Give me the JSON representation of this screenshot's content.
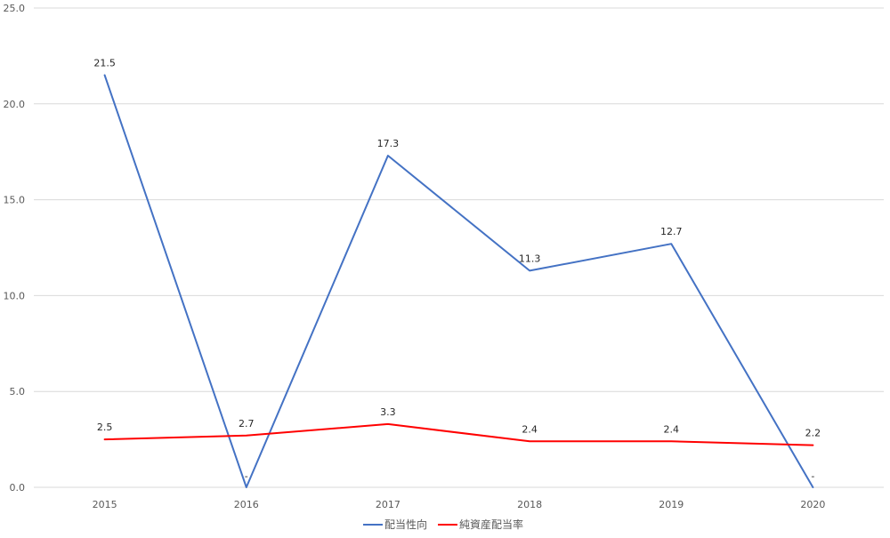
{
  "chart_data": {
    "type": "line",
    "categories": [
      "2015",
      "2016",
      "2017",
      "2018",
      "2019",
      "2020"
    ],
    "ylim": [
      0,
      25
    ],
    "yticks": [
      "0.0",
      "5.0",
      "10.0",
      "15.0",
      "20.0",
      "25.0"
    ],
    "grid": true,
    "legend_position": "bottom",
    "series": [
      {
        "name": "配当性向",
        "color": "#4472C4",
        "values": [
          21.5,
          0,
          17.3,
          11.3,
          12.7,
          0
        ],
        "labels": [
          "21.5",
          "-",
          "17.3",
          "11.3",
          "12.7",
          "-"
        ]
      },
      {
        "name": "純資産配当率",
        "color": "#FF0000",
        "values": [
          2.5,
          2.7,
          3.3,
          2.4,
          2.4,
          2.2
        ],
        "labels": [
          "2.5",
          "2.7",
          "3.3",
          "2.4",
          "2.4",
          "2.2"
        ]
      }
    ]
  }
}
